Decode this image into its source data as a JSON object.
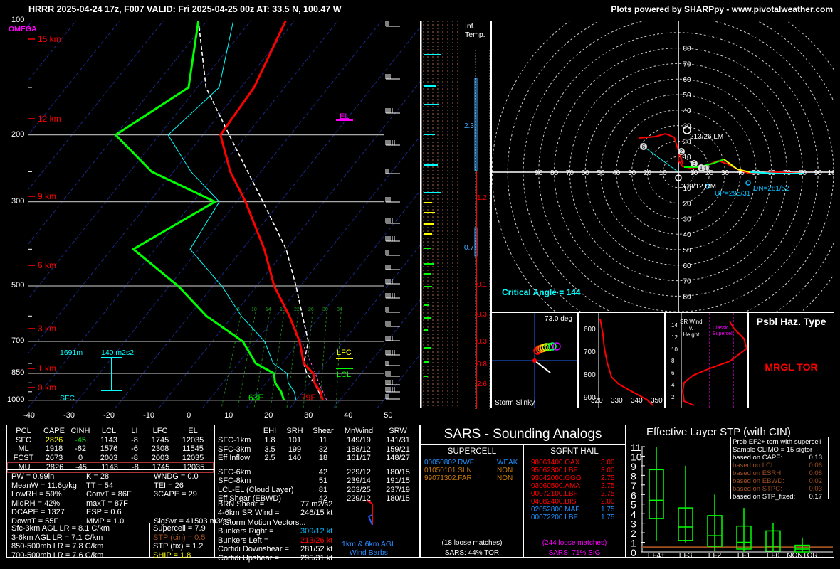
{
  "header": {
    "left": "HRRR 2025-04-24 17z, F007  VALID: Fri 2025-04-25 00z  AT: 33.5 N, 100.47 W",
    "right": "Plots powered by SHARPpy - www.pivotalweather.com"
  },
  "colors": {
    "temp": "#ff0000",
    "dewp": "#00ff00",
    "virt": "#ff6666",
    "wetbulb": "#00ffff",
    "parcel": "#ffffff",
    "accent_cyan": "#00ffff",
    "yellow": "#ffff00",
    "magenta": "#ff00ff"
  },
  "skewt": {
    "omega_label": "OMEGA",
    "pressure_ticks": [
      "100",
      "200",
      "300",
      "500",
      "700",
      "850",
      "1000"
    ],
    "x_ticks": [
      "-40",
      "-30",
      "-20",
      "-10",
      "0",
      "10",
      "20",
      "30",
      "40",
      "50"
    ],
    "height_labels": [
      "15 km",
      "12 km",
      "9 km",
      "6 km",
      "3 km",
      "1 km",
      "0 km"
    ],
    "el_label": "EL",
    "lfc_label": "LFC",
    "lcl_label": "LCL",
    "sfc_label": "SFC",
    "eff_layer_height": "1691m",
    "eff_layer_srh": "140 m2s2",
    "dewpoint_sfc": "63F",
    "temp_sfc": "79F",
    "mixing_ratio_labels": [
      "5",
      "10",
      "14",
      "18",
      "22",
      "26",
      "30",
      "34"
    ]
  },
  "inflow_panel": {
    "label": "Inf.\nTemp.",
    "values": [
      "2.3",
      "1.2",
      "0.7",
      "0.1",
      "0.3",
      "0.3",
      "0.8",
      "2.6"
    ]
  },
  "hodograph": {
    "critical_angle": "Critical Angle = 144",
    "labels": {
      "lm": "213/26 LM",
      "rm": "309/12 RM",
      "up": "UP=295/31",
      "dn": "DN=281/52"
    },
    "x_ticks": [
      "90",
      "80",
      "70",
      "60",
      "50",
      "40",
      "30",
      "20",
      "10",
      "10",
      "20",
      "30",
      "40",
      "50",
      "60",
      "70",
      "80",
      "90",
      "100"
    ],
    "y_ticks": [
      "80",
      "70",
      "60",
      "50",
      "40",
      "30",
      "20",
      "10",
      "10",
      "20",
      "30",
      "40",
      "50",
      "60",
      "70",
      "80"
    ]
  },
  "storm_slinky": {
    "angle": "73.0 deg",
    "label": "Storm Slinky"
  },
  "theta_panel": {
    "y_ticks": [
      "600",
      "700",
      "800",
      "900"
    ],
    "x_ticks": [
      "320",
      "330",
      "340",
      "350"
    ]
  },
  "srwind_panel": {
    "title": "SR Wind\nv.\nHeight",
    "classic": "Classic\nSupercell",
    "y_ticks": [
      "14",
      "12",
      "10",
      "8",
      "6",
      "4",
      "2"
    ]
  },
  "hazard": {
    "title": "Psbl Haz. Type",
    "value": "MRGL TOR"
  },
  "parcels": {
    "headers": [
      "PCL",
      "CAPE",
      "CINH",
      "LCL",
      "LI",
      "LFC",
      "EL"
    ],
    "rows": [
      [
        "SFC",
        "2826",
        "-45",
        "1143",
        "-8",
        "1745",
        "12035"
      ],
      [
        "ML",
        "1918",
        "-62",
        "1576",
        "-6",
        "2308",
        "11545"
      ],
      [
        "FCST",
        "2673",
        "0",
        "2003",
        "-8",
        "2003",
        "12035"
      ],
      [
        "MU",
        "2826",
        "-45",
        "1143",
        "-8",
        "1745",
        "12035"
      ]
    ]
  },
  "indices": [
    [
      "PW = 0.99in",
      "K = 28",
      "WNDG = 0.0"
    ],
    [
      "MeanW = 11.6g/kg",
      "TT = 54",
      "TEI = 26"
    ],
    [
      "LowRH = 59%",
      "ConvT = 86F",
      "3CAPE = 29"
    ],
    [
      "MidRH = 42%",
      "maxT = 87F",
      ""
    ],
    [
      "DCAPE = 1327",
      "ESP = 0.6",
      ""
    ],
    [
      "DownT = 55F",
      "MMP = 1.0",
      "SigSvr = 41503 m3/s3"
    ]
  ],
  "lapse": [
    "Sfc-3km AGL LR = 8.1 C/km",
    "3-6km AGL LR = 7.1 C/km",
    "850-500mb LR = 7.8 C/km",
    "700-500mb LR = 7.6 C/km"
  ],
  "composite": [
    "Supercell = 7.9",
    "STP (cin) = 0.5",
    "STP (fix) = 1.2",
    "SHIP = 1.8"
  ],
  "kinematics": {
    "headers": [
      "EHI",
      "SRH",
      "Shear",
      "MnWind",
      "SRW"
    ],
    "rows": [
      [
        "SFC-1km",
        "1.8",
        "101",
        "11",
        "149/19",
        "141/31"
      ],
      [
        "SFC-3km",
        "3.5",
        "199",
        "32",
        "188/12",
        "159/21"
      ],
      [
        "Eff Inflow",
        "2.5",
        "140",
        "18",
        "161/17",
        "148/27"
      ],
      [
        "SFC-6km",
        "",
        "",
        "42",
        "229/12",
        "180/15"
      ],
      [
        "SFC-8km",
        "",
        "",
        "51",
        "239/14",
        "191/15"
      ],
      [
        "LCL-EL (Cloud Layer)",
        "",
        "",
        "81",
        "263/25",
        "237/19"
      ],
      [
        "Eff Shear (EBWD)",
        "",
        "",
        "42",
        "229/12",
        "180/15"
      ]
    ],
    "brn_label": "BRN Shear =",
    "brn": "77 m2/s2",
    "srw_label": "4-6km SR Wind =",
    "srw": "246/15 kt",
    "sm_title": "...Storm Motion Vectors...",
    "sm": [
      [
        "Bunkers Right =",
        "309/12 kt"
      ],
      [
        "Bunkers Left =",
        "213/26 kt"
      ],
      [
        "Corfidi Downshear =",
        "281/52 kt"
      ],
      [
        "Corfidi Upshear =",
        "295/31 kt"
      ]
    ],
    "barb_label": "1km & 6km AGL\nWind Barbs"
  },
  "sars": {
    "title": "SARS - Sounding Analogs",
    "supercell_title": "SUPERCELL",
    "hail_title": "SGFNT HAIL",
    "supercell": [
      [
        "00050802.RWF",
        "WEAK"
      ],
      [
        "01050101.SLN",
        "NON"
      ],
      [
        "99071302.FAR",
        "NON"
      ]
    ],
    "hail": [
      [
        "98061400.OAX",
        "3.00"
      ],
      [
        "95062300.LBF",
        "3.00"
      ],
      [
        "93042000.GGG",
        "2.75"
      ],
      [
        "03060500.AMA",
        "2.75"
      ],
      [
        "00072100.LBF",
        "2.75"
      ],
      [
        "04082400.BIS",
        "2.00"
      ],
      [
        "02052800.MAF",
        "1.75"
      ],
      [
        "00072200.LBF",
        "1.75"
      ]
    ],
    "supercell_matches": "(18 loose matches)",
    "supercell_sars": "SARS: 44% TOR",
    "hail_matches": "(244 loose matches)",
    "hail_sars": "SARS: 71% SIG"
  },
  "stp": {
    "title": "Effective Layer STP (with CIN)",
    "y_ticks": [
      "0",
      "1",
      "2",
      "3",
      "4",
      "5",
      "6",
      "7",
      "8",
      "9",
      "10",
      "11"
    ],
    "categories": [
      "EF4+",
      "EF3",
      "EF2",
      "EF1",
      "EF0",
      "NONTOR"
    ],
    "legend_title": "Prob EF2+ torn with supercell",
    "legend_sub": "Sample CLIMO = 15 sigtor",
    "legend": [
      [
        "based on CAPE:",
        "0.13"
      ],
      [
        "based on LCL:",
        "0.06"
      ],
      [
        "based on ESRH:",
        "0.08"
      ],
      [
        "based on EBWD:",
        "0.02"
      ],
      [
        "based on STPC:",
        "0.03"
      ],
      [
        "based on STP_fixed:",
        "0.17"
      ]
    ],
    "current_value": 0.5
  },
  "chart_data": [
    {
      "type": "line",
      "title": "",
      "xlabel": "",
      "ylabel": "",
      "x_ticks": [
        -40,
        -30,
        -20,
        -10,
        0,
        10,
        20,
        30,
        40,
        50
      ],
      "xlim": [
        -40,
        50
      ],
      "ylim": [
        1000,
        100
      ],
      "yscale": "log",
      "series": [
        {
          "name": "",
          "values": [
            [
              1000,
              26.1
            ],
            [
              950,
              24
            ],
            [
              900,
              21
            ],
            [
              850,
              19
            ],
            [
              800,
              15
            ],
            [
              700,
              10
            ],
            [
              600,
              3
            ],
            [
              500,
              -6
            ],
            [
              400,
              -15
            ],
            [
              300,
              -28
            ],
            [
              250,
              -37
            ],
            [
              200,
              -46
            ],
            [
              150,
              -47
            ],
            [
              100,
              -52
            ]
          ]
        },
        {
          "name": "",
          "values": [
            [
              1000,
              17.2
            ],
            [
              950,
              15
            ],
            [
              900,
              12
            ],
            [
              850,
              10
            ],
            [
              800,
              4
            ],
            [
              700,
              -3
            ],
            [
              600,
              -16
            ],
            [
              500,
              -28
            ],
            [
              400,
              -45
            ],
            [
              300,
              -35
            ],
            [
              250,
              -55
            ],
            [
              200,
              -70
            ],
            [
              150,
              -62
            ],
            [
              100,
              -72
            ]
          ]
        }
      ]
    },
    {
      "type": "box",
      "title": "Effective Layer STP (with CIN)",
      "categories": [
        "EF4+",
        "EF3",
        "EF2",
        "EF1",
        "EF0",
        "NONTOR"
      ],
      "ylim": [
        0,
        11
      ],
      "boxes": [
        {
          "whisker_low": 1.2,
          "q1": 3.5,
          "median": 5.4,
          "q3": 8.6,
          "whisker_high": 11.0
        },
        {
          "whisker_low": 1.0,
          "q1": 1.2,
          "median": 2.6,
          "q3": 4.6,
          "whisker_high": 9.0
        },
        {
          "whisker_low": 0.1,
          "q1": 0.6,
          "median": 1.7,
          "q3": 3.8,
          "whisker_high": 6.0
        },
        {
          "whisker_low": 0.0,
          "q1": 0.3,
          "median": 1.0,
          "q3": 2.7,
          "whisker_high": 4.6
        },
        {
          "whisker_low": 0.0,
          "q1": 0.1,
          "median": 0.6,
          "q3": 2.2,
          "whisker_high": 3.0
        },
        {
          "whisker_low": 0.0,
          "q1": 0.0,
          "median": 0.3,
          "q3": 0.7,
          "whisker_high": 1.5
        }
      ]
    }
  ]
}
